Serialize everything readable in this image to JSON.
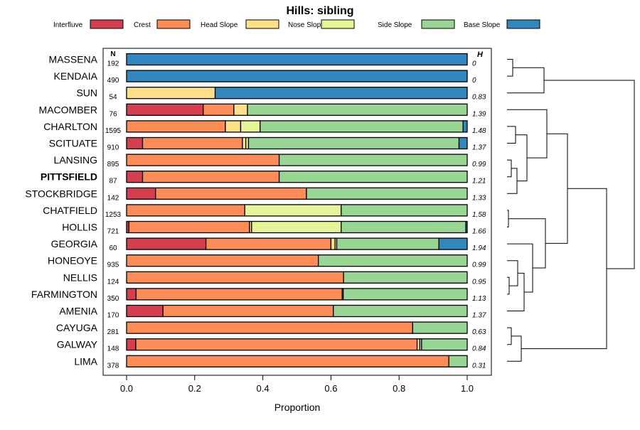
{
  "chart_data": {
    "type": "bar",
    "orientation": "horizontal-stacked",
    "title": "Hills: sibling",
    "xlabel": "Proportion",
    "xlim": [
      0,
      1
    ],
    "xticks": [
      "0.0",
      "0.2",
      "0.4",
      "0.6",
      "0.8",
      "1.0"
    ],
    "n_header": "N",
    "h_header": "H",
    "legend_placement": "top",
    "categories": [
      "Interfluve",
      "Crest",
      "Head Slope",
      "Nose Slope",
      "Side Slope",
      "Base Slope"
    ],
    "colors": [
      "#d53e4f",
      "#fc8d59",
      "#fee08b",
      "#e6f598",
      "#99d594",
      "#3288bd"
    ],
    "highlight": "PITTSFIELD",
    "rows": [
      {
        "name": "MASSENA",
        "n": "192",
        "h": "0",
        "values": [
          0,
          0,
          0,
          0,
          0,
          1.0
        ]
      },
      {
        "name": "KENDAIA",
        "n": "490",
        "h": "0",
        "values": [
          0,
          0,
          0,
          0,
          0,
          1.0
        ]
      },
      {
        "name": "SUN",
        "n": "54",
        "h": "0.83",
        "values": [
          0,
          0,
          0.26,
          0,
          0,
          0.74
        ]
      },
      {
        "name": "MACOMBER",
        "n": "76",
        "h": "1.39",
        "values": [
          0.225,
          0.09,
          0.04,
          0,
          0.645,
          0
        ]
      },
      {
        "name": "CHARLTON",
        "n": "1595",
        "h": "1.48",
        "values": [
          0,
          0.29,
          0.045,
          0.057,
          0.596,
          0.012
        ]
      },
      {
        "name": "SCITUATE",
        "n": "910",
        "h": "1.37",
        "values": [
          0.047,
          0.293,
          0.01,
          0.008,
          0.618,
          0.024
        ]
      },
      {
        "name": "LANSING",
        "n": "895",
        "h": "0.99",
        "values": [
          0,
          0.448,
          0,
          0,
          0.552,
          0
        ]
      },
      {
        "name": "PITTSFIELD",
        "n": "87",
        "h": "1.21",
        "values": [
          0.047,
          0.401,
          0,
          0,
          0.552,
          0
        ]
      },
      {
        "name": "STOCKBRIDGE",
        "n": "142",
        "h": "1.33",
        "values": [
          0.085,
          0.443,
          0,
          0,
          0.472,
          0
        ]
      },
      {
        "name": "CHATFIELD",
        "n": "1253",
        "h": "1.58",
        "values": [
          0,
          0.347,
          0,
          0.283,
          0.37,
          0
        ]
      },
      {
        "name": "HOLLIS",
        "n": "721",
        "h": "1.66",
        "values": [
          0.007,
          0.354,
          0.006,
          0.263,
          0.366,
          0.004
        ]
      },
      {
        "name": "GEORGIA",
        "n": "60",
        "h": "1.94",
        "values": [
          0.233,
          0.367,
          0.012,
          0.005,
          0.3,
          0.083
        ]
      },
      {
        "name": "HONEOYE",
        "n": "935",
        "h": "0.99",
        "values": [
          0,
          0.563,
          0,
          0,
          0.437,
          0
        ]
      },
      {
        "name": "NELLIS",
        "n": "124",
        "h": "0.95",
        "values": [
          0,
          0.637,
          0,
          0,
          0.363,
          0
        ]
      },
      {
        "name": "FARMINGTON",
        "n": "350",
        "h": "1.13",
        "values": [
          0.028,
          0.605,
          0,
          0.003,
          0.364,
          0
        ]
      },
      {
        "name": "AMENIA",
        "n": "170",
        "h": "1.37",
        "values": [
          0.107,
          0.5,
          0,
          0,
          0.393,
          0
        ]
      },
      {
        "name": "CAYUGA",
        "n": "281",
        "h": "0.63",
        "values": [
          0,
          0.84,
          0,
          0,
          0.16,
          0
        ]
      },
      {
        "name": "GALWAY",
        "n": "148",
        "h": "0.84",
        "values": [
          0.027,
          0.826,
          0.008,
          0.005,
          0.134,
          0
        ]
      },
      {
        "name": "LIMA",
        "n": "378",
        "h": "0.31",
        "values": [
          0,
          0.946,
          0,
          0,
          0.054,
          0
        ]
      }
    ]
  }
}
